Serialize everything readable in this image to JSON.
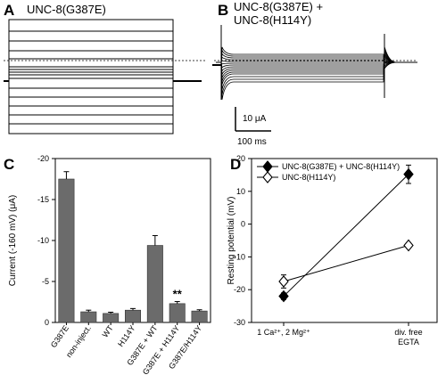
{
  "panels": {
    "A": {
      "letter": "A",
      "title": "UNC-8(G387E)"
    },
    "B": {
      "letter": "B",
      "title_line1": "UNC-8(G387E) +",
      "title_line2": "UNC-8(H114Y)",
      "scale_current": "10 μA",
      "scale_time": "100 ms"
    },
    "C": {
      "letter": "C"
    },
    "D": {
      "letter": "D"
    }
  },
  "chart_data": [
    {
      "panel": "C",
      "type": "bar",
      "ylabel": "Current (-160 mV) (μA)",
      "categories": [
        "G387E",
        "non-inject.",
        "WT",
        "H114Y",
        "G387E + WT",
        "G387E + H114Y",
        "G387E/H114Y"
      ],
      "values": [
        -17.5,
        -1.3,
        -1.1,
        -1.5,
        -9.4,
        -2.3,
        -1.4
      ],
      "errors": [
        0.9,
        0.2,
        0.15,
        0.2,
        1.2,
        0.25,
        0.15
      ],
      "ylim": [
        0,
        -20
      ],
      "yticks": [
        "0",
        "-5",
        "-10",
        "-15",
        "-20"
      ],
      "annotation": {
        "text": "**",
        "category_index": 5
      },
      "bar_color": "#6b6b6b"
    },
    {
      "panel": "D",
      "type": "line",
      "ylabel": "Resting potential (mV)",
      "categories": [
        "1 Ca²⁺, 2 Mg²⁺",
        "div. free EGTA"
      ],
      "x_label_lines": [
        [
          "1 Ca²⁺, 2 Mg²⁺"
        ],
        [
          "div. free",
          "EGTA"
        ]
      ],
      "ylim": [
        -30,
        20
      ],
      "yticks": [
        "20",
        "10",
        "0",
        "-10",
        "-20",
        "-30"
      ],
      "series": [
        {
          "name": "UNC-8(G387E) + UNC-8(H114Y)",
          "values": [
            -22,
            15.2
          ],
          "errors": [
            1.0,
            2.8
          ],
          "marker": "filled-diamond"
        },
        {
          "name": "UNC-8(H114Y)",
          "values": [
            -17.5,
            -6.5
          ],
          "errors": [
            2.0,
            0.8
          ],
          "marker": "open-diamond"
        }
      ],
      "legend_position": "top-left"
    }
  ]
}
